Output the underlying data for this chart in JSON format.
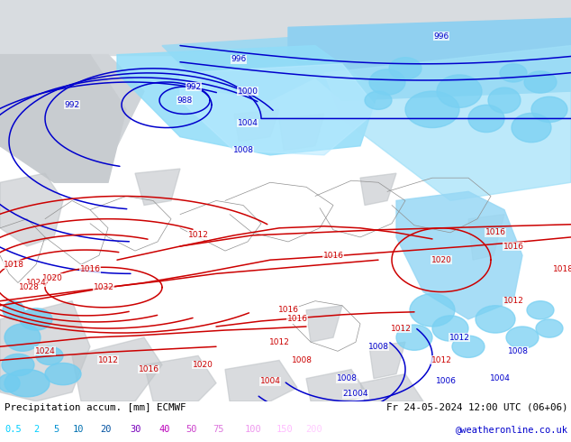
{
  "title_left": "Precipitation accum. [mm] ECMWF",
  "title_right": "Fr 24-05-2024 12:00 UTC (06+06)",
  "credit": "@weatheronline.co.uk",
  "legend_values": [
    "0.5",
    "2",
    "5",
    "10",
    "20",
    "30",
    "40",
    "50",
    "75",
    "100",
    "150",
    "200"
  ],
  "legend_colors": [
    "#00cfff",
    "#00a8e8",
    "#0090d0",
    "#0070b8",
    "#0050a0",
    "#9900cc",
    "#cc00cc",
    "#dd44dd",
    "#ee88ee",
    "#ffbbff",
    "#ffddff",
    "#ffddff"
  ],
  "land_color": "#c8f0a0",
  "sea_color": "#a0d8f0",
  "prec_light": "#80d8f8",
  "prec_mid": "#50c0f0",
  "prec_dark": "#20a8e8",
  "gray_land": "#c8c8c8",
  "isobar_blue": "#0000cc",
  "isobar_red": "#cc0000",
  "coast_color": "#808080",
  "bottom_bg": "#ffffff",
  "text_black": "#000000",
  "credit_blue": "#0000cc"
}
